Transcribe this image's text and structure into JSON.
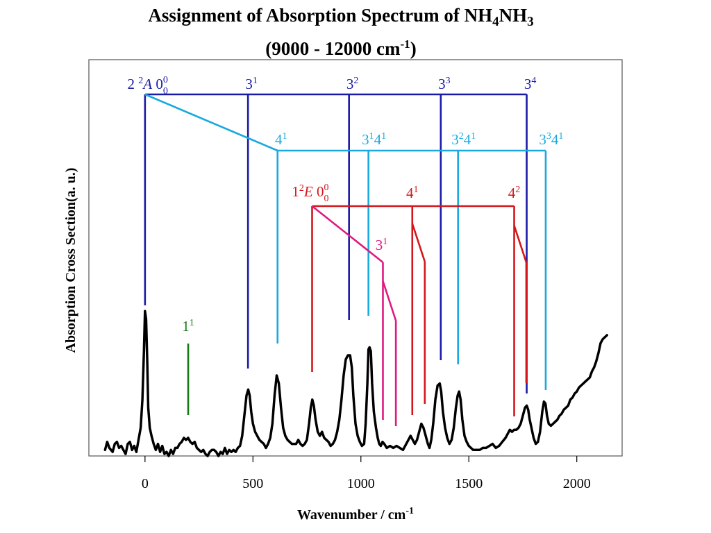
{
  "chart_data": {
    "type": "line",
    "title_line1_main": "Assignment of Absorption Spectrum of NH",
    "title_line1_sub1": "4",
    "title_line1_mid": "NH",
    "title_line1_sub2": "3",
    "title_line2_main": "(9000 - 12000 cm",
    "title_line2_sup": "-1",
    "title_line2_end": ")",
    "xlabel_main": "Wavenumber / cm",
    "xlabel_sup": "-1",
    "ylabel": "Absorption Cross Section(a. u.)",
    "xlim": [
      -260,
      2210
    ],
    "x_ticks": [
      0,
      500,
      1000,
      1500,
      2000
    ],
    "colors": {
      "spectrum": "#000000",
      "progression_2A_v3": "#1a1aa8",
      "progression_2A_v4": "#19a9e0",
      "progression_1E": "#d4161c",
      "progression_1E_v3": "#e0197f",
      "mode_1": "#167a16"
    },
    "series": [
      {
        "points": [
          [
            -185,
            1.5
          ],
          [
            -175,
            3.5
          ],
          [
            -165,
            2.0
          ],
          [
            -150,
            1.0
          ],
          [
            -140,
            3.0
          ],
          [
            -130,
            3.5
          ],
          [
            -120,
            2.0
          ],
          [
            -110,
            2.5
          ],
          [
            -100,
            1.5
          ],
          [
            -90,
            0.5
          ],
          [
            -80,
            3.0
          ],
          [
            -70,
            3.5
          ],
          [
            -60,
            1.5
          ],
          [
            -50,
            2.5
          ],
          [
            -40,
            1.0
          ],
          [
            -30,
            4.0
          ],
          [
            -20,
            7.0
          ],
          [
            -12,
            14.0
          ],
          [
            -5,
            26.0
          ],
          [
            0,
            36.0
          ],
          [
            5,
            34.0
          ],
          [
            10,
            24.0
          ],
          [
            15,
            12.0
          ],
          [
            22,
            7.0
          ],
          [
            30,
            5.0
          ],
          [
            40,
            3.0
          ],
          [
            50,
            1.5
          ],
          [
            60,
            3.0
          ],
          [
            70,
            1.0
          ],
          [
            80,
            2.5
          ],
          [
            90,
            0.5
          ],
          [
            100,
            1.0
          ],
          [
            110,
            0.0
          ],
          [
            120,
            1.5
          ],
          [
            130,
            0.5
          ],
          [
            140,
            2.0
          ],
          [
            150,
            2.0
          ],
          [
            160,
            3.0
          ],
          [
            170,
            3.5
          ],
          [
            180,
            4.5
          ],
          [
            190,
            4.0
          ],
          [
            200,
            4.5
          ],
          [
            210,
            3.5
          ],
          [
            220,
            3.0
          ],
          [
            230,
            3.5
          ],
          [
            240,
            2.0
          ],
          [
            250,
            1.5
          ],
          [
            260,
            1.0
          ],
          [
            270,
            1.5
          ],
          [
            280,
            0.5
          ],
          [
            290,
            0.0
          ],
          [
            300,
            1.0
          ],
          [
            310,
            1.5
          ],
          [
            320,
            1.5
          ],
          [
            330,
            1.0
          ],
          [
            340,
            0.0
          ],
          [
            350,
            1.0
          ],
          [
            360,
            0.5
          ],
          [
            370,
            2.0
          ],
          [
            380,
            0.5
          ],
          [
            390,
            1.5
          ],
          [
            400,
            1.0
          ],
          [
            410,
            1.5
          ],
          [
            420,
            1.0
          ],
          [
            430,
            2.0
          ],
          [
            440,
            2.5
          ],
          [
            450,
            5.0
          ],
          [
            460,
            10.0
          ],
          [
            470,
            15.0
          ],
          [
            478,
            16.5
          ],
          [
            485,
            15.0
          ],
          [
            492,
            11.0
          ],
          [
            500,
            8.0
          ],
          [
            510,
            6.0
          ],
          [
            520,
            5.0
          ],
          [
            530,
            4.0
          ],
          [
            540,
            3.5
          ],
          [
            550,
            3.0
          ],
          [
            560,
            2.0
          ],
          [
            570,
            3.0
          ],
          [
            580,
            4.5
          ],
          [
            590,
            8.0
          ],
          [
            600,
            15.0
          ],
          [
            610,
            20.0
          ],
          [
            620,
            18.0
          ],
          [
            630,
            12.0
          ],
          [
            640,
            7.0
          ],
          [
            650,
            5.0
          ],
          [
            660,
            4.0
          ],
          [
            670,
            3.5
          ],
          [
            680,
            3.0
          ],
          [
            690,
            3.0
          ],
          [
            700,
            3.0
          ],
          [
            710,
            4.0
          ],
          [
            720,
            3.0
          ],
          [
            730,
            2.5
          ],
          [
            740,
            3.0
          ],
          [
            750,
            4.0
          ],
          [
            760,
            8.0
          ],
          [
            768,
            12.0
          ],
          [
            775,
            14.0
          ],
          [
            782,
            12.5
          ],
          [
            790,
            9.0
          ],
          [
            800,
            6.0
          ],
          [
            810,
            5.0
          ],
          [
            820,
            6.0
          ],
          [
            830,
            4.5
          ],
          [
            840,
            4.0
          ],
          [
            850,
            3.5
          ],
          [
            860,
            2.5
          ],
          [
            870,
            3.0
          ],
          [
            880,
            4.0
          ],
          [
            890,
            6.0
          ],
          [
            900,
            9.0
          ],
          [
            910,
            14.0
          ],
          [
            920,
            20.0
          ],
          [
            930,
            24.0
          ],
          [
            940,
            25.0
          ],
          [
            950,
            25.0
          ],
          [
            958,
            22.0
          ],
          [
            965,
            15.0
          ],
          [
            975,
            8.0
          ],
          [
            985,
            5.0
          ],
          [
            995,
            3.5
          ],
          [
            1005,
            2.5
          ],
          [
            1015,
            3.0
          ],
          [
            1022,
            8.0
          ],
          [
            1030,
            18.0
          ],
          [
            1035,
            26.5
          ],
          [
            1040,
            27.0
          ],
          [
            1046,
            26.0
          ],
          [
            1052,
            18.0
          ],
          [
            1060,
            11.0
          ],
          [
            1070,
            7.0
          ],
          [
            1078,
            4.5
          ],
          [
            1085,
            3.0
          ],
          [
            1092,
            2.5
          ],
          [
            1100,
            3.5
          ],
          [
            1108,
            3.0
          ],
          [
            1120,
            2.0
          ],
          [
            1135,
            2.5
          ],
          [
            1150,
            2.0
          ],
          [
            1165,
            2.5
          ],
          [
            1180,
            2.0
          ],
          [
            1195,
            1.5
          ],
          [
            1210,
            3.0
          ],
          [
            1220,
            4.0
          ],
          [
            1230,
            5.0
          ],
          [
            1240,
            4.0
          ],
          [
            1250,
            3.0
          ],
          [
            1260,
            4.0
          ],
          [
            1270,
            6.0
          ],
          [
            1280,
            8.0
          ],
          [
            1290,
            7.0
          ],
          [
            1300,
            5.0
          ],
          [
            1310,
            3.0
          ],
          [
            1318,
            2.0
          ],
          [
            1326,
            4.0
          ],
          [
            1335,
            8.0
          ],
          [
            1345,
            14.0
          ],
          [
            1355,
            17.5
          ],
          [
            1365,
            18.0
          ],
          [
            1372,
            16.0
          ],
          [
            1380,
            11.0
          ],
          [
            1390,
            7.0
          ],
          [
            1400,
            4.5
          ],
          [
            1410,
            3.0
          ],
          [
            1420,
            4.0
          ],
          [
            1430,
            7.0
          ],
          [
            1440,
            12.0
          ],
          [
            1448,
            15.0
          ],
          [
            1455,
            16.0
          ],
          [
            1462,
            14.0
          ],
          [
            1470,
            9.0
          ],
          [
            1480,
            5.0
          ],
          [
            1490,
            3.5
          ],
          [
            1500,
            2.5
          ],
          [
            1510,
            2.0
          ],
          [
            1520,
            1.5
          ],
          [
            1535,
            1.5
          ],
          [
            1550,
            1.5
          ],
          [
            1565,
            2.0
          ],
          [
            1580,
            2.0
          ],
          [
            1595,
            2.5
          ],
          [
            1610,
            3.0
          ],
          [
            1625,
            2.0
          ],
          [
            1640,
            2.5
          ],
          [
            1655,
            3.5
          ],
          [
            1670,
            4.5
          ],
          [
            1680,
            5.5
          ],
          [
            1690,
            6.5
          ],
          [
            1700,
            6.0
          ],
          [
            1710,
            6.5
          ],
          [
            1720,
            6.5
          ],
          [
            1730,
            7.0
          ],
          [
            1740,
            8.0
          ],
          [
            1750,
            10.0
          ],
          [
            1760,
            12.0
          ],
          [
            1768,
            12.5
          ],
          [
            1775,
            11.5
          ],
          [
            1782,
            9.0
          ],
          [
            1790,
            7.0
          ],
          [
            1800,
            4.5
          ],
          [
            1810,
            3.0
          ],
          [
            1820,
            3.5
          ],
          [
            1830,
            6.0
          ],
          [
            1840,
            11.0
          ],
          [
            1848,
            13.5
          ],
          [
            1855,
            13.0
          ],
          [
            1862,
            10.0
          ],
          [
            1870,
            8.0
          ],
          [
            1880,
            7.5
          ],
          [
            1890,
            8.0
          ],
          [
            1900,
            8.5
          ],
          [
            1910,
            9.0
          ],
          [
            1920,
            10.0
          ],
          [
            1930,
            10.5
          ],
          [
            1940,
            11.5
          ],
          [
            1950,
            12.0
          ],
          [
            1960,
            12.5
          ],
          [
            1970,
            14.0
          ],
          [
            1980,
            14.5
          ],
          [
            1990,
            15.5
          ],
          [
            2000,
            16.0
          ],
          [
            2010,
            17.0
          ],
          [
            2020,
            17.5
          ],
          [
            2030,
            18.0
          ],
          [
            2040,
            18.5
          ],
          [
            2050,
            19.0
          ],
          [
            2060,
            19.5
          ],
          [
            2070,
            21.0
          ],
          [
            2080,
            22.0
          ],
          [
            2090,
            23.5
          ],
          [
            2100,
            25.5
          ],
          [
            2110,
            28.0
          ],
          [
            2120,
            29.0
          ],
          [
            2130,
            29.5
          ],
          [
            2140,
            30.0
          ]
        ]
      }
    ],
    "annotations": {
      "p2A_v3_origin": {
        "num": "2",
        "sup": "2",
        "sym": "A",
        "tail": "0",
        "tail_sup": "0",
        "tail_sub": "0"
      },
      "p2A_v3": [
        {
          "label": "3",
          "sup": "1"
        },
        {
          "label": "3",
          "sup": "2"
        },
        {
          "label": "3",
          "sup": "3"
        },
        {
          "label": "3",
          "sup": "4"
        }
      ],
      "p2A_v4": [
        {
          "a": "4",
          "a_sup": "1",
          "b": "",
          "b_sup": ""
        },
        {
          "a": "3",
          "a_sup": "1",
          "b": "4",
          "b_sup": "1"
        },
        {
          "a": "3",
          "a_sup": "2",
          "b": "4",
          "b_sup": "1"
        },
        {
          "a": "3",
          "a_sup": "3",
          "b": "4",
          "b_sup": "1"
        }
      ],
      "p1E_origin": {
        "num": "1",
        "sup": "2",
        "sym": "E",
        "tail": "0",
        "tail_sup": "0",
        "tail_sub": "0"
      },
      "p1E": [
        {
          "label": "4",
          "sup": "1"
        },
        {
          "label": "4",
          "sup": "2"
        }
      ],
      "p1E_v3": {
        "label": "3",
        "sup": "1"
      },
      "mode1": {
        "label": "1",
        "sup": "1"
      }
    }
  }
}
